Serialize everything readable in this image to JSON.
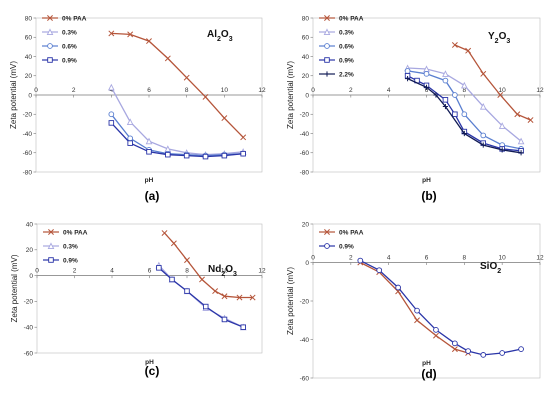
{
  "figure": {
    "panel_labels": [
      "(a)",
      "(b)",
      "(c)",
      "(d)"
    ]
  },
  "chart_data": [
    {
      "type": "line",
      "panel": "(a)",
      "annotation": "Al2O3",
      "xlabel": "pH",
      "ylabel": "Zeta potential (mV)",
      "xlim": [
        0,
        12
      ],
      "ylim": [
        -80,
        80
      ],
      "xticks": [
        0,
        2,
        4,
        6,
        8,
        10,
        12
      ],
      "yticks": [
        -80,
        -60,
        -40,
        -20,
        0,
        20,
        40,
        60,
        80
      ],
      "legend": "top-left",
      "series": [
        {
          "name": "0% PAA",
          "color": "#b5553a",
          "marker": "x",
          "x": [
            4,
            5,
            6,
            7,
            8,
            9,
            10,
            11
          ],
          "y": [
            64,
            63,
            56,
            38,
            18,
            -2,
            -24,
            -44
          ]
        },
        {
          "name": "0.3%",
          "color": "#a8a8e0",
          "marker": "triangle",
          "x": [
            4,
            5,
            6,
            7,
            8,
            9,
            10,
            11
          ],
          "y": [
            8,
            -28,
            -48,
            -56,
            -60,
            -62,
            -61,
            -59
          ]
        },
        {
          "name": "0.6%",
          "color": "#5a7fd0",
          "marker": "circle",
          "x": [
            4,
            5,
            6,
            7,
            8,
            9,
            10,
            11
          ],
          "y": [
            -20,
            -45,
            -57,
            -61,
            -62,
            -63,
            -62,
            -61
          ]
        },
        {
          "name": "0.9%",
          "color": "#2a35a8",
          "marker": "square",
          "x": [
            4,
            5,
            6,
            7,
            8,
            9,
            10,
            11
          ],
          "y": [
            -29,
            -50,
            -59,
            -62,
            -63,
            -64,
            -63,
            -61
          ]
        }
      ]
    },
    {
      "type": "line",
      "panel": "(b)",
      "annotation": "Y2O3",
      "xlabel": "pH",
      "ylabel": "Zeta potential (mV)",
      "xlim": [
        0,
        12
      ],
      "ylim": [
        -80,
        80
      ],
      "xticks": [
        0,
        2,
        4,
        6,
        8,
        10,
        12
      ],
      "yticks": [
        -80,
        -60,
        -40,
        -20,
        0,
        20,
        40,
        60,
        80
      ],
      "legend": "top-left",
      "series": [
        {
          "name": "0% PAA",
          "color": "#b5553a",
          "marker": "x",
          "x": [
            7.5,
            8.2,
            9,
            9.9,
            10.8,
            11.5
          ],
          "y": [
            52,
            46,
            22,
            0,
            -20,
            -26
          ]
        },
        {
          "name": "0.3%",
          "color": "#a8a8e0",
          "marker": "triangle",
          "x": [
            5,
            6,
            7,
            8,
            9,
            10,
            11
          ],
          "y": [
            28,
            27,
            22,
            10,
            -12,
            -32,
            -48
          ]
        },
        {
          "name": "0.6%",
          "color": "#5a7fd0",
          "marker": "circle",
          "x": [
            5,
            6,
            7,
            7.5,
            8,
            9,
            10,
            11
          ],
          "y": [
            25,
            22,
            15,
            0,
            -20,
            -42,
            -52,
            -56
          ]
        },
        {
          "name": "0.9%",
          "color": "#2a35a8",
          "marker": "square",
          "x": [
            5,
            5.5,
            6,
            7,
            7.5,
            8,
            9,
            10,
            11
          ],
          "y": [
            20,
            15,
            10,
            -5,
            -20,
            -38,
            -50,
            -56,
            -58
          ]
        },
        {
          "name": "2.2%",
          "color": "#101a55",
          "marker": "cross",
          "x": [
            5,
            6,
            6.5,
            7,
            8,
            9,
            10,
            11
          ],
          "y": [
            17,
            8,
            0,
            -12,
            -40,
            -52,
            -57,
            -60
          ]
        }
      ]
    },
    {
      "type": "line",
      "panel": "(c)",
      "annotation": "Nd2O3",
      "xlabel": "pH",
      "ylabel": "Zeta potential (mV)",
      "xlim": [
        0,
        12
      ],
      "ylim": [
        -60,
        40
      ],
      "xticks": [
        0,
        2,
        4,
        6,
        8,
        10,
        12
      ],
      "yticks": [
        -60,
        -40,
        -20,
        0,
        20,
        40
      ],
      "legend": "top-left",
      "series": [
        {
          "name": "0% PAA",
          "color": "#b5553a",
          "marker": "x",
          "x": [
            6.8,
            7.3,
            8,
            8.8,
            9.5,
            10,
            10.8,
            11.5
          ],
          "y": [
            33,
            25,
            12,
            -3,
            -12,
            -16,
            -17,
            -17
          ]
        },
        {
          "name": "0.3%",
          "color": "#a8a8e0",
          "marker": "triangle",
          "x": [
            6.5,
            7.2,
            8,
            9,
            10,
            11
          ],
          "y": [
            8,
            -3,
            -12,
            -25,
            -33,
            -40
          ]
        },
        {
          "name": "0.9%",
          "color": "#2a35a8",
          "marker": "square",
          "x": [
            6.5,
            7.2,
            8,
            9,
            10,
            11
          ],
          "y": [
            6,
            -3,
            -12,
            -24,
            -34,
            -40
          ]
        }
      ]
    },
    {
      "type": "line",
      "panel": "(d)",
      "annotation": "SiO2",
      "xlabel": "pH",
      "ylabel": "Zeta potential (mV)",
      "xlim": [
        0,
        12
      ],
      "ylim": [
        -60,
        20
      ],
      "xticks": [
        0,
        2,
        4,
        6,
        8,
        10,
        12
      ],
      "yticks": [
        -60,
        -40,
        -20,
        0,
        20
      ],
      "legend": "top-left",
      "series": [
        {
          "name": "0% PAA",
          "color": "#b5553a",
          "marker": "x",
          "x": [
            2.5,
            3.5,
            4.5,
            5.5,
            6.5,
            7.5,
            8.2
          ],
          "y": [
            0,
            -5,
            -15,
            -30,
            -38,
            -45,
            -47
          ]
        },
        {
          "name": "0.9%",
          "color": "#2a35a8",
          "marker": "circle",
          "x": [
            2.5,
            3.5,
            4.5,
            5.5,
            6.5,
            7.5,
            8.2,
            9,
            10,
            11
          ],
          "y": [
            1,
            -4,
            -13,
            -25,
            -35,
            -42,
            -46,
            -48,
            -47,
            -45
          ]
        }
      ]
    }
  ]
}
